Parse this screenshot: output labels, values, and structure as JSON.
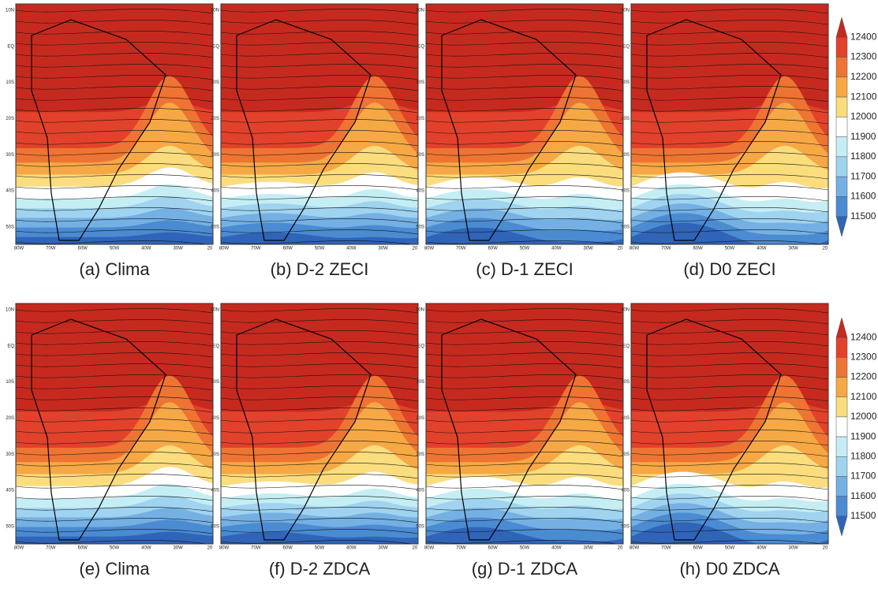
{
  "panels": [
    {
      "caption": "(a) Clima"
    },
    {
      "caption": "(b) D-2 ZECI"
    },
    {
      "caption": "(c) D-1 ZECI"
    },
    {
      "caption": "(d) D0 ZECI"
    },
    {
      "caption": "(e) Clima"
    },
    {
      "caption": "(f) D-2 ZDCA"
    },
    {
      "caption": "(g) D-1 ZDCA"
    },
    {
      "caption": "(h) D0 ZDCA"
    }
  ],
  "latitude_labels": [
    "10N",
    "EQ",
    "10S",
    "20S",
    "30S",
    "40S",
    "50S"
  ],
  "longitude_labels": [
    "80W",
    "70W",
    "60W",
    "50W",
    "40W",
    "30W",
    "20"
  ],
  "colorbar": {
    "levels": [
      12400,
      12300,
      12200,
      12100,
      12000,
      11900,
      11800,
      11700,
      11600,
      11500
    ],
    "colors": [
      "#c62a1f",
      "#e2422b",
      "#ee7433",
      "#f6a845",
      "#fbdd7e",
      "#ffffff",
      "#c4eef4",
      "#9fd3ef",
      "#74b0e3",
      "#4a8bd2",
      "#2f64b8"
    ]
  }
}
